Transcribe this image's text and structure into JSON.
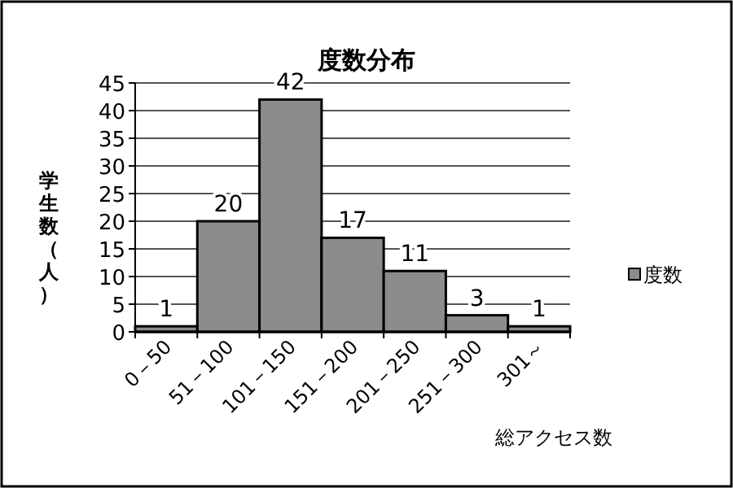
{
  "chart_data": {
    "type": "bar",
    "title": "度数分布",
    "xlabel": "総アクセス数",
    "ylabel": "学生数（人）",
    "categories": [
      "0－50",
      "51－100",
      "101－150",
      "151－200",
      "201－250",
      "251－300",
      "301～"
    ],
    "series": [
      {
        "name": "度数",
        "color": "#8c8c8c",
        "values": [
          1,
          20,
          42,
          17,
          11,
          3,
          1
        ]
      }
    ],
    "ylim": [
      0,
      45
    ],
    "yticks": [
      0,
      5,
      10,
      15,
      20,
      25,
      30,
      35,
      40,
      45
    ],
    "grid": "y",
    "legend": "right",
    "data_labels": true
  }
}
